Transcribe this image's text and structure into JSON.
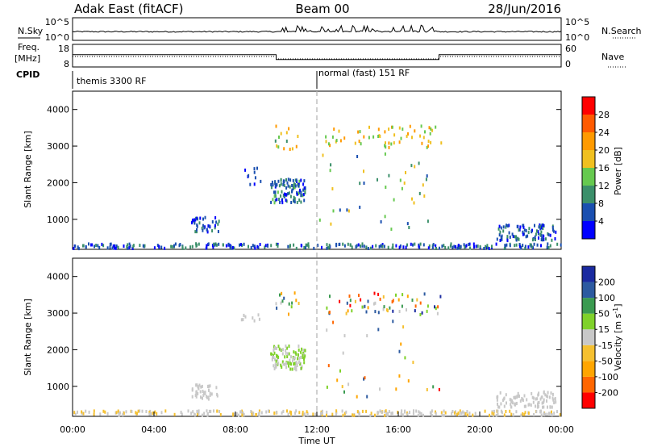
{
  "header": {
    "station": "Adak East (fitACF)",
    "beam": "Beam 00",
    "date": "28/Jun/2016"
  },
  "nsky_panel": {
    "left_label": "N.Sky",
    "right_label": "N.Search",
    "left_ticks": [
      "10^5",
      "10^0"
    ],
    "right_ticks": [
      "10^5",
      "10^0"
    ]
  },
  "freq_panel": {
    "left_label_1": "Freq.",
    "left_label_2": "[MHz]",
    "left_ticks": [
      "18",
      "8"
    ],
    "right_label": "Nave",
    "right_ticks": [
      "60",
      "0"
    ],
    "freq_segments": [
      {
        "start": 0,
        "end": 10,
        "value": 13.5
      },
      {
        "start": 10,
        "end": 18,
        "value": 11.0
      },
      {
        "start": 18,
        "end": 24,
        "value": 13.5
      }
    ]
  },
  "cpid_panel": {
    "label": "CPID",
    "programs": [
      {
        "start_hour": 0,
        "label": "themis 3300 RF"
      },
      {
        "start_hour": 12,
        "label": "normal (fast) 151 RF"
      }
    ]
  },
  "time_axis": {
    "label": "Time UT",
    "ticks": [
      "00:00",
      "04:00",
      "08:00",
      "12:00",
      "16:00",
      "20:00",
      "00:00"
    ]
  },
  "colors": {
    "power": [
      "#0000ff",
      "#1a4fb0",
      "#3b8f6a",
      "#66c94f",
      "#f0c020",
      "#ff9a00",
      "#ff5a00",
      "#ff0000"
    ],
    "velocity": [
      "#ff0000",
      "#ff6600",
      "#ffa500",
      "#f5c030",
      "#c8c8c8",
      "#7fd12a",
      "#3a9a50",
      "#2c5aa0",
      "#1a2aa0"
    ],
    "dashed_marker": "#b0b0b0"
  },
  "chart_data": [
    {
      "type": "heatmap",
      "name": "power",
      "ylabel": "Slant Range [km]",
      "y_ticks": [
        "1000",
        "2000",
        "3000",
        "4000"
      ],
      "ylim": [
        180,
        4500
      ],
      "xlim": [
        0,
        24
      ],
      "colorbar_label": "Power [dB]",
      "colorbar_ticks": [
        "4",
        "8",
        "12",
        "16",
        "20",
        "24",
        "28"
      ],
      "vmin": 0,
      "vmax": 32,
      "scatter_regions": [
        {
          "t0": 0.0,
          "t1": 24.0,
          "r0": 200,
          "r1": 330,
          "v0": 2,
          "v1": 12,
          "n": 260
        },
        {
          "t0": 5.8,
          "t1": 7.2,
          "r0": 650,
          "r1": 1050,
          "v0": 2,
          "v1": 10,
          "n": 40
        },
        {
          "t0": 8.2,
          "t1": 9.2,
          "r0": 1950,
          "r1": 2450,
          "v0": 2,
          "v1": 8,
          "n": 10
        },
        {
          "t0": 9.7,
          "t1": 11.4,
          "r0": 1450,
          "r1": 2100,
          "v0": 2,
          "v1": 14,
          "n": 110
        },
        {
          "t0": 9.9,
          "t1": 11.1,
          "r0": 2900,
          "r1": 3550,
          "v0": 10,
          "v1": 24,
          "n": 14
        },
        {
          "t0": 12.3,
          "t1": 18.2,
          "r0": 2950,
          "r1": 3550,
          "v0": 12,
          "v1": 24,
          "n": 60
        },
        {
          "t0": 12.1,
          "t1": 18.0,
          "r0": 700,
          "r1": 2800,
          "v0": 6,
          "v1": 20,
          "n": 40
        },
        {
          "t0": 20.8,
          "t1": 23.7,
          "r0": 420,
          "r1": 850,
          "v0": 2,
          "v1": 10,
          "n": 90
        }
      ]
    },
    {
      "type": "heatmap",
      "name": "velocity",
      "ylabel": "Slant Range [km]",
      "y_ticks": [
        "1000",
        "2000",
        "3000",
        "4000"
      ],
      "ylim": [
        180,
        4500
      ],
      "xlim": [
        0,
        24
      ],
      "colorbar_label": "Velocity [m s^-1]",
      "colorbar_ticks": [
        "-200",
        "-100",
        "-50",
        "-15",
        "15",
        "50",
        "100",
        "200"
      ],
      "vmin": -250,
      "vmax": 250,
      "scatter_regions": [
        {
          "t0": 0.0,
          "t1": 24.0,
          "r0": 200,
          "r1": 330,
          "v0": -40,
          "v1": -5,
          "n": 260
        },
        {
          "t0": 5.8,
          "t1": 7.2,
          "r0": 650,
          "r1": 1050,
          "v0": -10,
          "v1": 10,
          "n": 40
        },
        {
          "t0": 8.2,
          "t1": 9.2,
          "r0": 2750,
          "r1": 2950,
          "v0": -10,
          "v1": 10,
          "n": 8
        },
        {
          "t0": 9.7,
          "t1": 11.4,
          "r0": 1450,
          "r1": 2100,
          "v0": -10,
          "v1": 60,
          "n": 110
        },
        {
          "t0": 9.9,
          "t1": 11.1,
          "r0": 2950,
          "r1": 3550,
          "v0": -220,
          "v1": 220,
          "n": 14
        },
        {
          "t0": 12.3,
          "t1": 18.2,
          "r0": 2950,
          "r1": 3550,
          "v0": -220,
          "v1": 220,
          "n": 60
        },
        {
          "t0": 12.1,
          "t1": 18.0,
          "r0": 700,
          "r1": 2800,
          "v0": -200,
          "v1": 200,
          "n": 30
        },
        {
          "t0": 20.8,
          "t1": 23.7,
          "r0": 420,
          "r1": 850,
          "v0": -10,
          "v1": 10,
          "n": 90
        }
      ]
    }
  ]
}
